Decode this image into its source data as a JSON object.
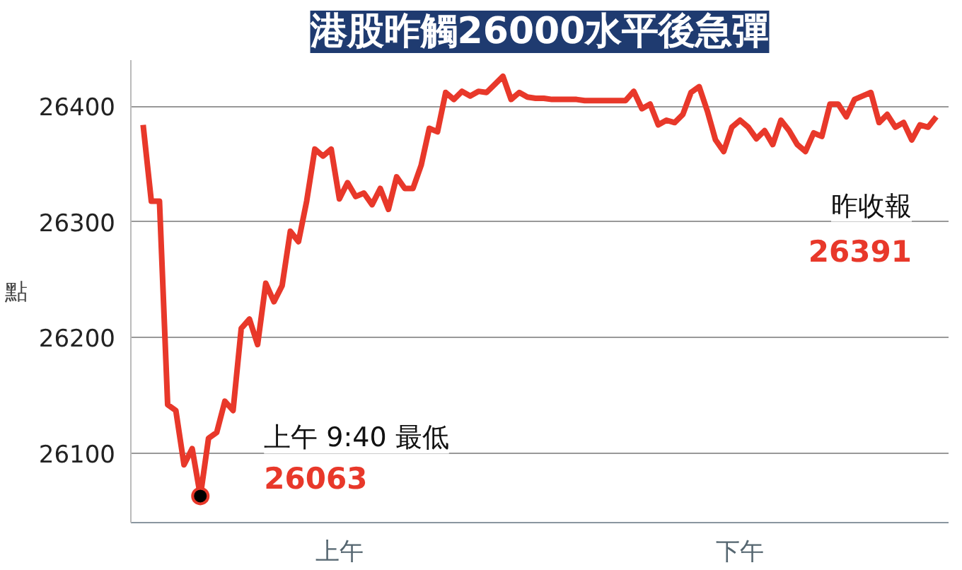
{
  "chart_data": {
    "type": "line",
    "title": "港股昨觸26000水平後急彈",
    "ylabel": "點",
    "categories": [
      null,
      null,
      null,
      null,
      null,
      null,
      null,
      null,
      null,
      null,
      null,
      null,
      null,
      null,
      null,
      null,
      null,
      null,
      null,
      null,
      null,
      null,
      null,
      null,
      "上午",
      null,
      null,
      null,
      null,
      null,
      null,
      null,
      null,
      null,
      null,
      null,
      null,
      null,
      null,
      null,
      null,
      null,
      null,
      null,
      null,
      null,
      null,
      null,
      null,
      null,
      null,
      null,
      null,
      null,
      null,
      null,
      null,
      null,
      null,
      null,
      null,
      null,
      null,
      null,
      null,
      null,
      null,
      null,
      null,
      null,
      null,
      null,
      null,
      "下午",
      null,
      null,
      null,
      null,
      null,
      null,
      null,
      null,
      null,
      null,
      null,
      null,
      null,
      null,
      null,
      null,
      null,
      null,
      null,
      null,
      null,
      null,
      null,
      null
    ],
    "series": [
      {
        "color": "#e8382a",
        "values": [
          26384,
          26318,
          26318,
          26142,
          26137,
          26090,
          26104,
          26063,
          26113,
          26118,
          26145,
          26137,
          26208,
          26216,
          26194,
          26247,
          26231,
          26245,
          26292,
          26283,
          26318,
          26363,
          26357,
          26363,
          26320,
          26334,
          26322,
          26325,
          26315,
          26329,
          26311,
          26339,
          26329,
          26329,
          26349,
          26381,
          26378,
          26412,
          26406,
          26413,
          26409,
          26413,
          26412,
          26419,
          26426,
          26406,
          26412,
          26408,
          26407,
          26407,
          26406,
          26406,
          26406,
          26406,
          26405,
          26405,
          26405,
          26405,
          26405,
          26405,
          26413,
          26398,
          26402,
          26384,
          26388,
          26386,
          26393,
          26412,
          26417,
          26396,
          26371,
          26361,
          26382,
          26388,
          26382,
          26372,
          26379,
          26367,
          26388,
          26379,
          26367,
          26361,
          26377,
          26374,
          26402,
          26402,
          26391,
          26406,
          26409,
          26412,
          26386,
          26393,
          26382,
          26386,
          26371,
          26384,
          26382,
          26391
        ]
      }
    ],
    "ylim": [
      26040,
      26440
    ],
    "yticks": [
      26100,
      26200,
      26300,
      26400
    ],
    "grid": "y",
    "marker": "none",
    "line_style": "solid",
    "annotations": [
      "上午 9:40 最低 26063",
      "昨收報 26391"
    ]
  }
}
